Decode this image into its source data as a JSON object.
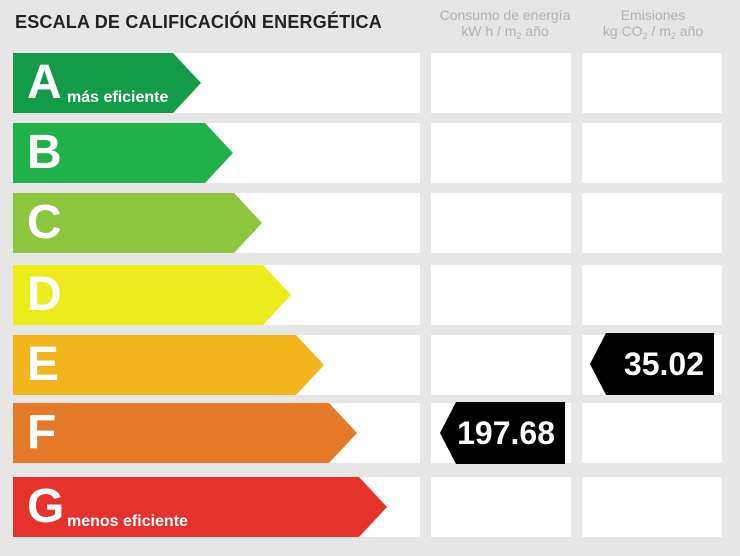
{
  "title": "ESCALA DE CALIFICACIÓN ENERGÉTICA",
  "columns": {
    "consumo": {
      "line1": "Consumo de energía",
      "line2_pre": "kW h / m",
      "line2_sub": "2",
      "line2_post": " año"
    },
    "emisiones": {
      "line1": "Emisiones",
      "line2_pre": "kg CO",
      "line2_sub": "2",
      "line2_mid": " / m",
      "line2_sub2": "2",
      "line2_post": " año"
    }
  },
  "ratings": [
    {
      "letter": "A",
      "sub": "más eficiente",
      "color": "#139b48"
    },
    {
      "letter": "B",
      "sub": "",
      "color": "#20b14a"
    },
    {
      "letter": "C",
      "sub": "",
      "color": "#8cc63f"
    },
    {
      "letter": "D",
      "sub": "",
      "color": "#ecec1d"
    },
    {
      "letter": "E",
      "sub": "",
      "color": "#f3b51b"
    },
    {
      "letter": "F",
      "sub": "",
      "color": "#e47a28"
    },
    {
      "letter": "G",
      "sub": "menos eficiente",
      "color": "#e5322c"
    }
  ],
  "consumo_value": {
    "rating": "F",
    "value": "197.68"
  },
  "emisiones_value": {
    "rating": "E",
    "value": "35.02"
  }
}
